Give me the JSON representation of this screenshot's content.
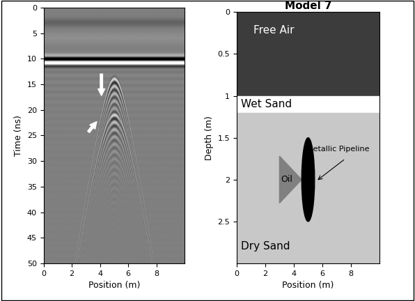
{
  "chart_data": [
    {
      "type": "radargram",
      "xlabel": "Position (m)",
      "ylabel": "Time (ns)",
      "xlim": [
        0,
        10
      ],
      "ylim": [
        50,
        0
      ],
      "xticks": [
        0,
        2,
        4,
        6,
        8
      ],
      "yticks": [
        0,
        5,
        10,
        15,
        20,
        25,
        30,
        35,
        40,
        45,
        50
      ],
      "direct_wave_time": 10.5,
      "hyperbola_position": 5,
      "hyperbola_apex_times": [
        14,
        21
      ],
      "velocity": 0.117,
      "arrows": [
        {
          "from": [
            4.1,
            12.6
          ],
          "to": [
            4.1,
            17.6
          ]
        },
        {
          "from": [
            3.1,
            24.6
          ],
          "to": [
            3.85,
            22.0
          ]
        }
      ]
    },
    {
      "type": "model",
      "title": "Model 7",
      "xlabel": "Position (m)",
      "ylabel": "Depth (m)",
      "xlim": [
        0,
        10
      ],
      "ylim": [
        3,
        0
      ],
      "xticks": [
        0,
        2,
        4,
        6,
        8
      ],
      "yticks": [
        0,
        0.5,
        1,
        1.5,
        2,
        2.5
      ],
      "layers": [
        {
          "name": "Free Air",
          "top": 0,
          "bottom": 1,
          "color": "#3c3c3c"
        },
        {
          "name": "Wet Sand",
          "top": 1,
          "bottom": 1.2,
          "color": "#ffffff"
        },
        {
          "name": "Dry Sand",
          "top": 1.2,
          "bottom": 3,
          "color": "#c8c8c8"
        }
      ],
      "pipeline": {
        "label": "Metallic Pipeline",
        "x": 5,
        "depth": 2,
        "width": 0.9,
        "height": 1.0,
        "color": "#000000"
      },
      "oil": {
        "label": "Oil",
        "vertices": [
          [
            3,
            1.72
          ],
          [
            3,
            2.28
          ],
          [
            4.55,
            2.0
          ]
        ],
        "color": "#808080"
      }
    }
  ]
}
